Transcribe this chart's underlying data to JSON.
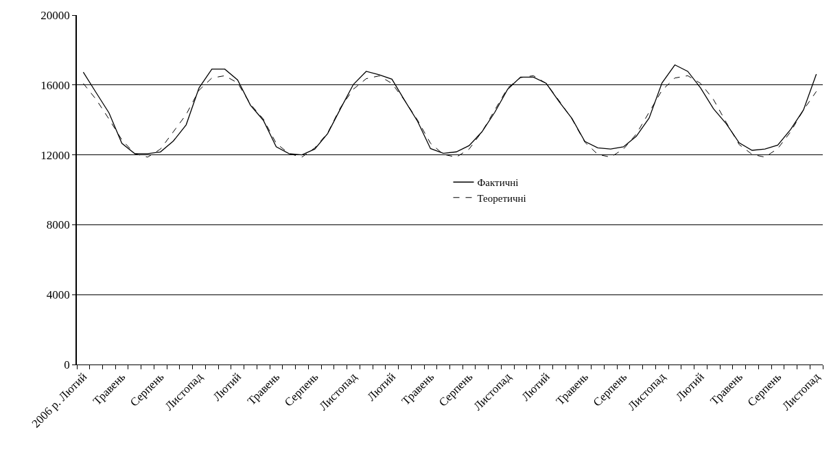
{
  "chart_data": {
    "type": "line",
    "categories": [
      "2006 р. Лютий",
      null,
      null,
      "Травень",
      null,
      null,
      "Серпень",
      null,
      null,
      "Листопад",
      null,
      null,
      "Лютий",
      null,
      null,
      "Травень",
      null,
      null,
      "Серпень",
      null,
      null,
      "Листопад",
      null,
      null,
      "Лютий",
      null,
      null,
      "Травень",
      null,
      null,
      "Серпень",
      null,
      null,
      "Листопад",
      null,
      null,
      "Лютий",
      null,
      null,
      "Травень",
      null,
      null,
      "Серпень",
      null,
      null,
      "Листопад",
      null,
      null,
      "Лютий",
      null,
      null,
      "Травень",
      null,
      null,
      "Серпень",
      null,
      null,
      "Листопад"
    ],
    "series": [
      {
        "name": "Фактичні",
        "color": "#000000",
        "line_style": "solid",
        "values": [
          16730,
          15560,
          14400,
          12660,
          12070,
          12070,
          12170,
          12790,
          13720,
          15830,
          16910,
          16910,
          16290,
          14840,
          13980,
          12460,
          12070,
          12000,
          12330,
          13220,
          14640,
          16030,
          16780,
          16590,
          16330,
          15100,
          13910,
          12360,
          12090,
          12170,
          12530,
          13320,
          14440,
          15760,
          16450,
          16450,
          16090,
          15040,
          14080,
          12770,
          12400,
          12330,
          12460,
          13060,
          14110,
          16120,
          17150,
          16780,
          15830,
          14640,
          13780,
          12690,
          12260,
          12330,
          12560,
          13450,
          14570,
          16620
        ]
      },
      {
        "name": "Теоретичні",
        "color": "#000000",
        "line_style": "dashed",
        "values": [
          16090,
          15170,
          14050,
          12860,
          12070,
          11870,
          12330,
          13320,
          14310,
          15700,
          16400,
          16530,
          16120,
          14900,
          14050,
          12660,
          12070,
          11870,
          12400,
          13250,
          14710,
          15760,
          16360,
          16520,
          16090,
          15100,
          13980,
          12660,
          12030,
          11870,
          12330,
          13320,
          14570,
          15830,
          16420,
          16530,
          16090,
          15100,
          14050,
          12730,
          12030,
          11870,
          12330,
          13190,
          14440,
          15700,
          16400,
          16530,
          16090,
          15170,
          13850,
          12590,
          12030,
          11870,
          12360,
          13320,
          14570,
          15630
        ]
      }
    ],
    "ylim": [
      0,
      20000
    ],
    "yticks": [
      0,
      4000,
      8000,
      12000,
      16000,
      20000
    ],
    "grid": "y",
    "legend": "center",
    "marker": "none"
  }
}
